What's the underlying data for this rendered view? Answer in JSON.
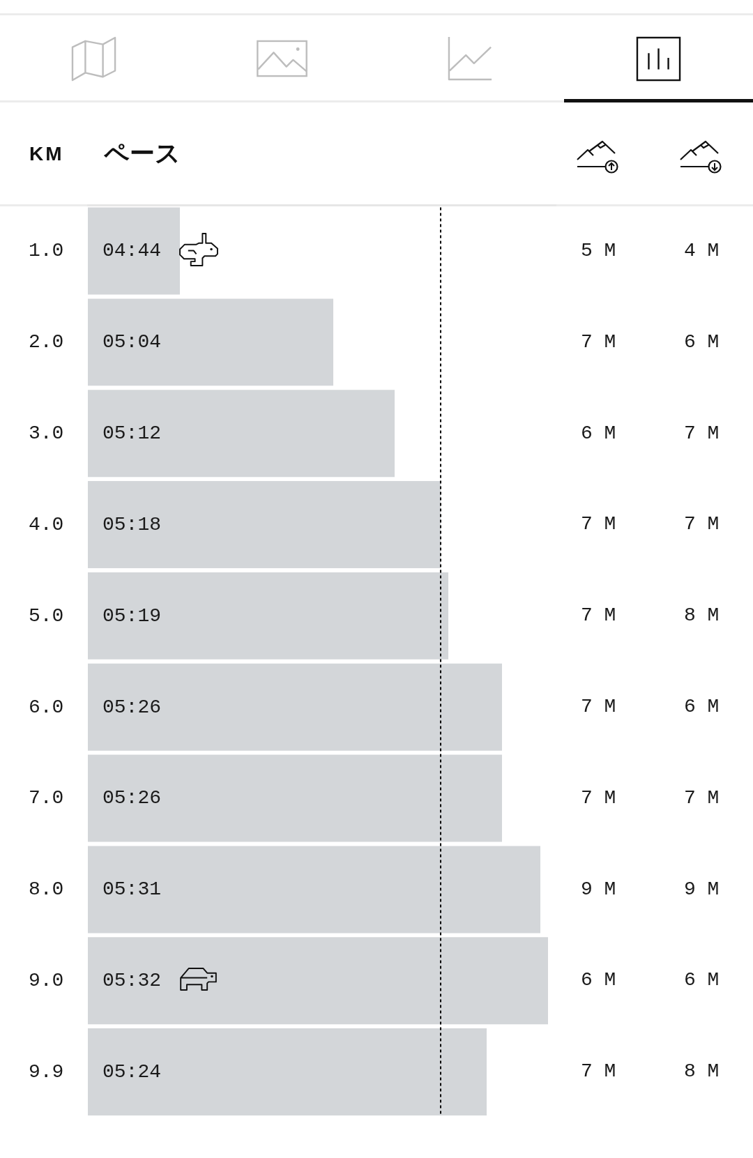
{
  "chart_data": [
    {
      "type": "bar",
      "orientation": "horizontal",
      "xlabel": "ペース",
      "ylabel": "KM",
      "tick_labels": "y",
      "categories": [
        "1.0",
        "2.0",
        "3.0",
        "4.0",
        "5.0",
        "6.0",
        "7.0",
        "8.0",
        "9.0",
        "9.9"
      ],
      "xlim": [
        4.5333,
        5.55
      ],
      "series": [
        {
          "color": "#d3d6d9",
          "values": [
            4.7333,
            5.0667,
            5.2,
            5.3,
            5.3167,
            5.4333,
            5.4333,
            5.5167,
            5.5333,
            5.4
          ],
          "value_labels": [
            "04:44",
            "05:04",
            "05:12",
            "05:18",
            "05:19",
            "05:26",
            "05:26",
            "05:31",
            "05:32",
            "05:24"
          ]
        }
      ],
      "ref_lines": [
        {
          "axis": "x",
          "value": 5.3,
          "color": "#000000",
          "line_style": "dashed"
        }
      ]
    },
    {
      "type": "other",
      "annotations": [
        "5 M",
        "4 M",
        "7 M",
        "6 M",
        "6 M",
        "7 M",
        "7 M",
        "7 M",
        "7 M",
        "8 M",
        "7 M",
        "6 M",
        "7 M",
        "7 M",
        "9 M",
        "9 M",
        "6 M",
        "6 M",
        "7 M",
        "8 M"
      ]
    }
  ]
}
